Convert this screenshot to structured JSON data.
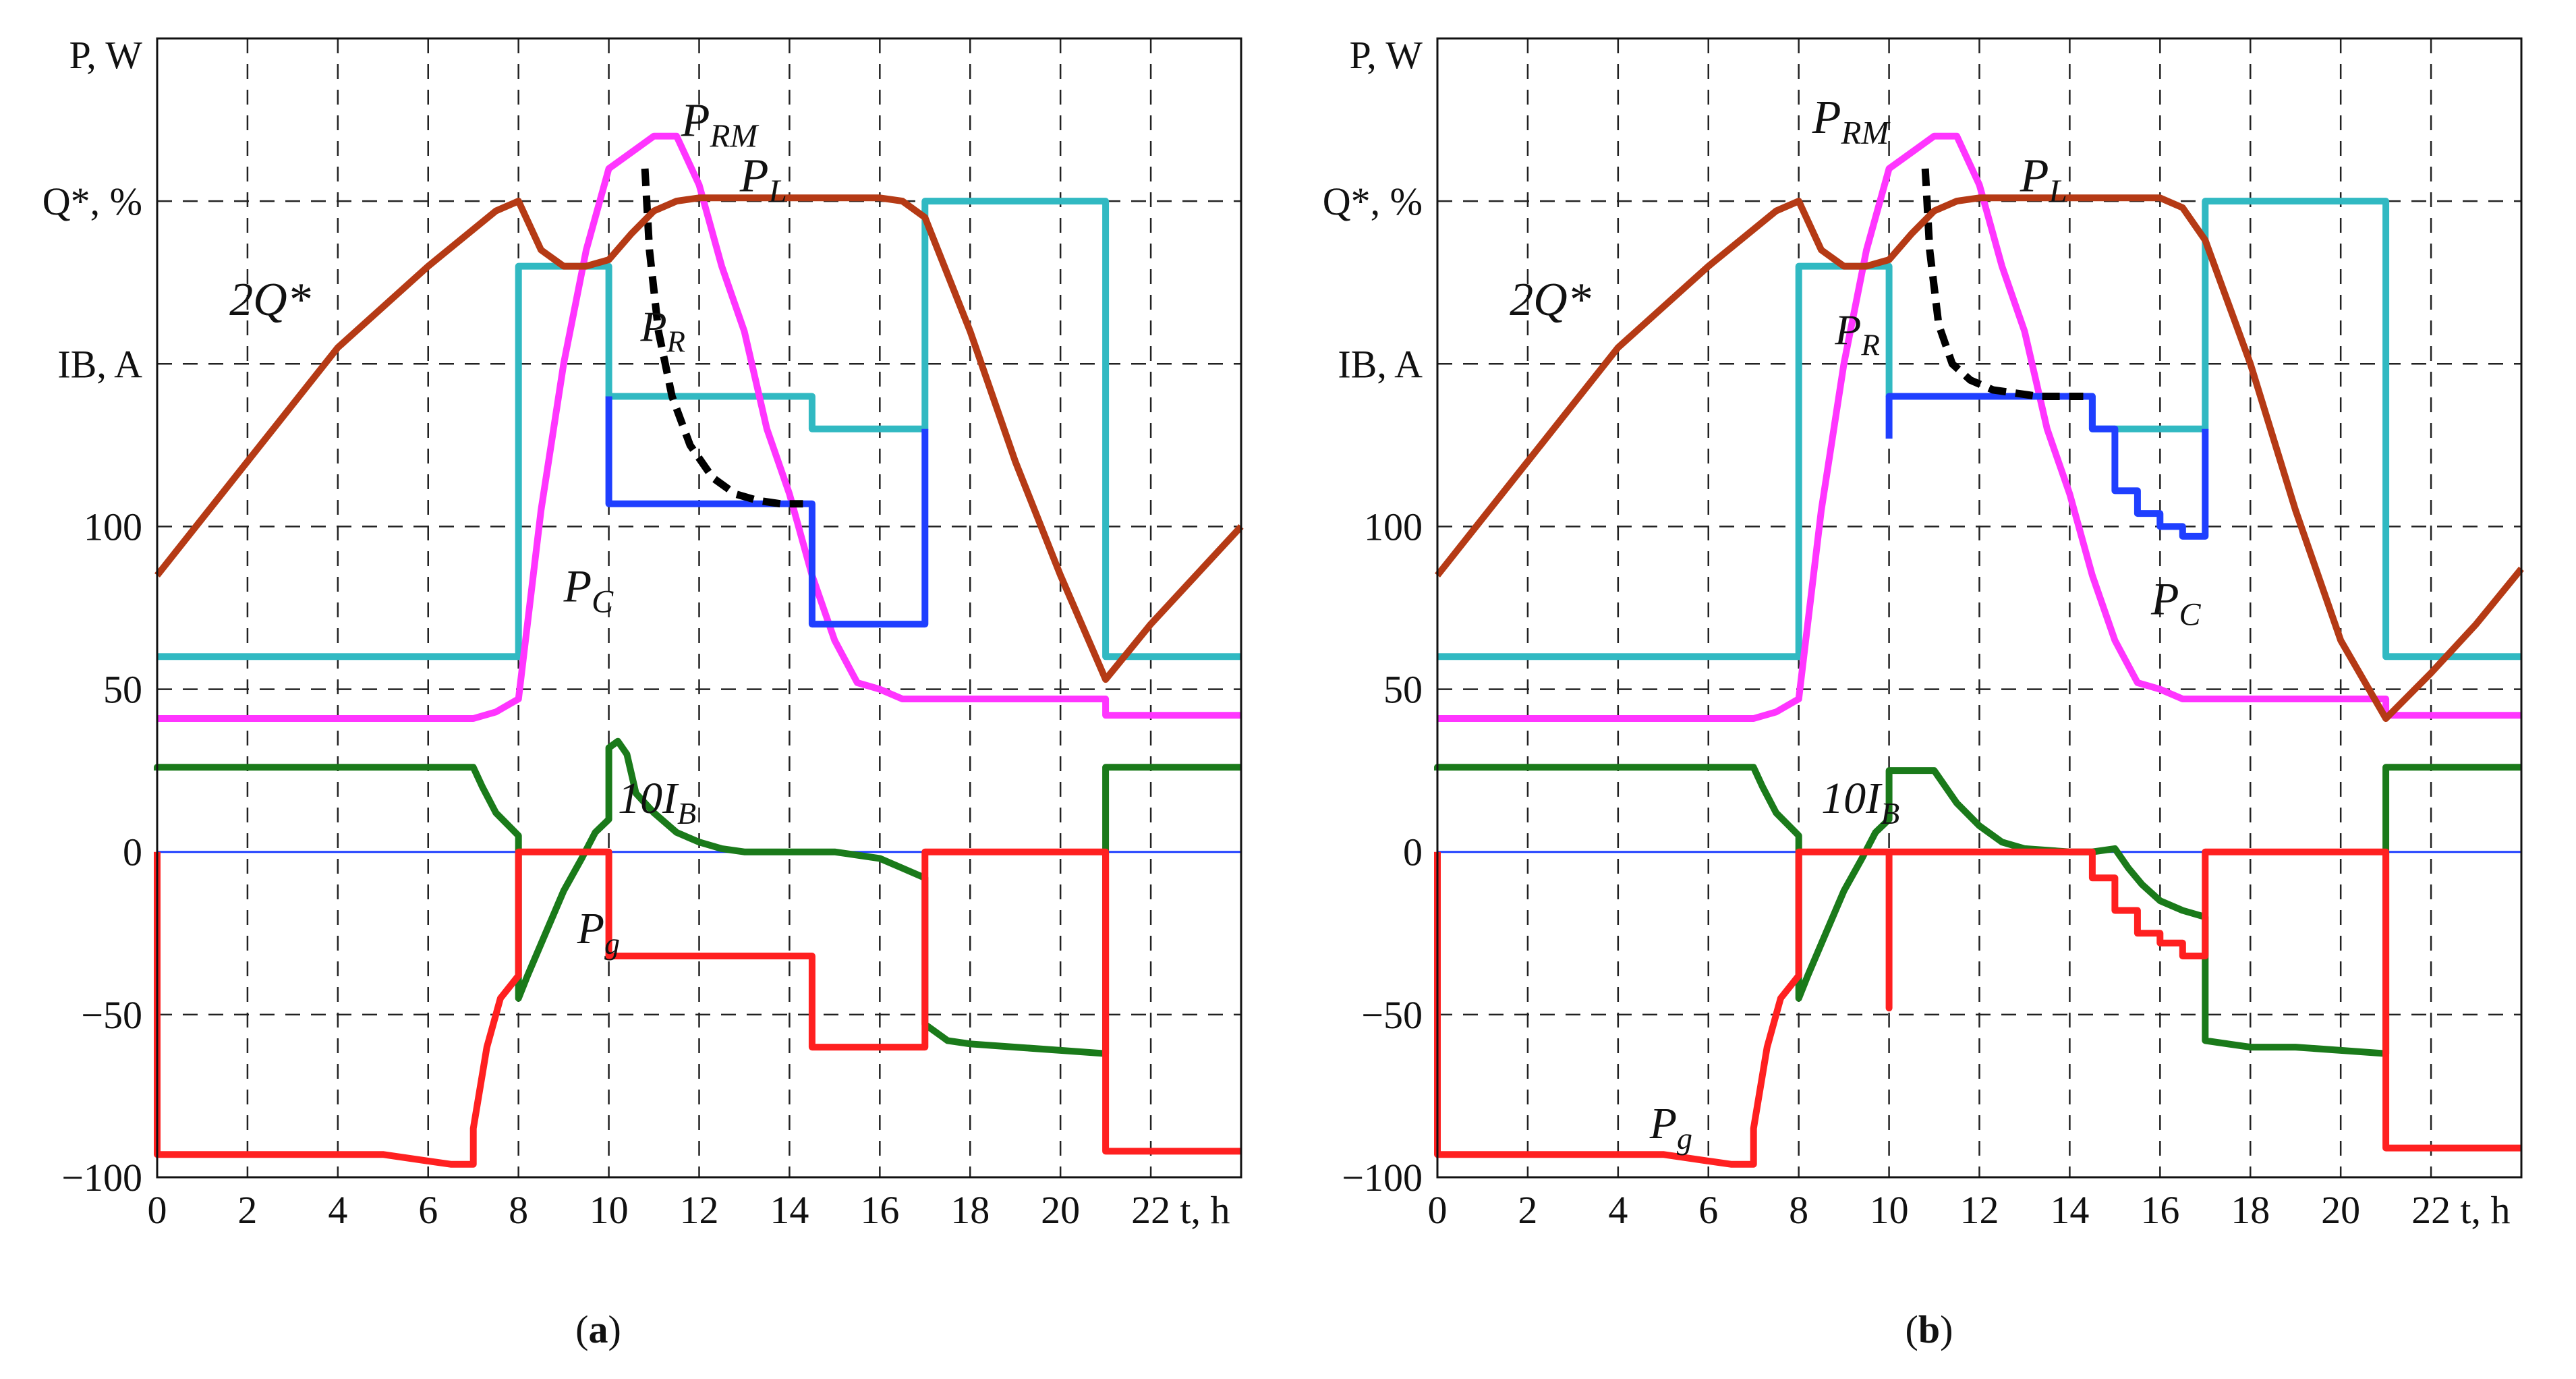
{
  "chart_data": [
    {
      "type": "line",
      "panel_label": "(a)",
      "xlabel": "t, h",
      "ylabels": [
        "P, W",
        "Q*, %",
        "IB, A"
      ],
      "x_ticks": [
        "0",
        "2",
        "4",
        "6",
        "8",
        "10",
        "12",
        "14",
        "16",
        "18",
        "20",
        "22"
      ],
      "y_ticks": [
        "−100",
        "−50",
        "0",
        "50",
        "100"
      ],
      "xlim": [
        0,
        24
      ],
      "ylim": [
        -100,
        250
      ],
      "grid": true,
      "series": [
        {
          "key": "PL",
          "name": "PL",
          "color": "#31b9c2",
          "style": "solid",
          "x": [
            0,
            8,
            8,
            10,
            10,
            14.5,
            14.5,
            17,
            17,
            21,
            21,
            24
          ],
          "y": [
            60,
            60,
            180,
            180,
            140,
            140,
            130,
            130,
            200,
            200,
            60,
            60
          ]
        },
        {
          "key": "PRM",
          "name": "PRM",
          "color": "#ff35ff",
          "style": "solid",
          "x": [
            0,
            7,
            7.5,
            8,
            8.5,
            9,
            9.5,
            10,
            10.5,
            11,
            11.5,
            12,
            12.5,
            13,
            13.5,
            14,
            14.5,
            15,
            15.5,
            16,
            16.5,
            17,
            18,
            20,
            21,
            21,
            24
          ],
          "y": [
            41,
            41,
            43,
            47,
            105,
            150,
            185,
            210,
            215,
            220,
            220,
            205,
            180,
            160,
            130,
            110,
            85,
            65,
            52,
            50,
            47,
            47,
            47,
            47,
            47,
            42,
            42
          ]
        },
        {
          "key": "PR",
          "name": "PR",
          "color": "#000000",
          "style": "dashed",
          "x": [
            10.8,
            10.9,
            11.1,
            11.4,
            11.8,
            12.3,
            12.8,
            13.3,
            13.8,
            14.3
          ],
          "y": [
            210,
            185,
            160,
            140,
            125,
            115,
            110,
            108,
            107,
            107
          ]
        },
        {
          "key": "PC",
          "name": "PC",
          "color": "#1f3fff",
          "style": "solid",
          "x": [
            10,
            10,
            14.5,
            14.5,
            17,
            17
          ],
          "y": [
            140,
            107,
            107,
            70,
            70,
            130
          ]
        },
        {
          "key": "Q",
          "name": "2Q*",
          "color": "#b53a15",
          "style": "solid",
          "x": [
            0,
            2,
            4,
            6,
            7.5,
            8,
            8.5,
            9,
            9.5,
            10,
            10.5,
            11,
            11.5,
            12,
            13,
            14,
            15,
            16,
            16.5,
            17,
            18,
            19,
            20,
            21,
            22,
            23,
            24
          ],
          "y": [
            85,
            120,
            155,
            180,
            197,
            200,
            185,
            180,
            180,
            182,
            190,
            197,
            200,
            201,
            201,
            201,
            201,
            201,
            200,
            195,
            160,
            120,
            85,
            53,
            70,
            85,
            100
          ]
        },
        {
          "key": "IB",
          "name": "10IB",
          "color": "#1a7a1a",
          "style": "solid",
          "x": [
            0,
            0,
            7,
            7.2,
            7.5,
            8,
            8,
            8.2,
            8.6,
            9,
            9.4,
            9.7,
            10,
            10,
            10.2,
            10.4,
            10.6,
            11,
            11.5,
            12,
            12.5,
            13,
            14,
            15,
            15.5,
            16,
            16.5,
            17,
            17,
            17.5,
            18,
            19,
            20,
            21,
            21,
            24
          ],
          "y": [
            25,
            26,
            26,
            20,
            12,
            5,
            -45,
            -38,
            -25,
            -12,
            -2,
            6,
            10,
            32,
            34,
            30,
            18,
            12,
            6,
            3,
            1,
            0,
            0,
            0,
            -1,
            -2,
            -5,
            -8,
            -53,
            -58,
            -59,
            -60,
            -61,
            -62,
            26,
            26
          ]
        },
        {
          "key": "Pg",
          "name": "Pg",
          "color": "#ff2020",
          "style": "solid",
          "x": [
            0,
            0,
            4,
            5,
            6,
            6.5,
            7,
            7,
            7.3,
            7.6,
            8,
            8,
            10,
            10,
            14.5,
            14.5,
            17,
            17,
            21,
            21,
            24
          ],
          "y": [
            0,
            -93,
            -93,
            -93,
            -95,
            -96,
            -96,
            -85,
            -60,
            -45,
            -38,
            0,
            0,
            -32,
            -32,
            -60,
            -60,
            0,
            0,
            -92,
            -92
          ]
        }
      ],
      "annotations": [
        {
          "text": "PRM",
          "label": "P",
          "sub": "RM"
        },
        {
          "text": "PL",
          "label": "P",
          "sub": "L"
        },
        {
          "text": "2Q*",
          "label": "2Q*",
          "sub": ""
        },
        {
          "text": "PR",
          "label": "P",
          "sub": "R"
        },
        {
          "text": "PC",
          "label": "P",
          "sub": "C"
        },
        {
          "text": "10IB",
          "label": "10I",
          "sub": "B"
        },
        {
          "text": "Pg",
          "label": "P",
          "sub": "g"
        }
      ]
    },
    {
      "type": "line",
      "panel_label": "(b)",
      "xlabel": "t, h",
      "ylabels": [
        "P, W",
        "Q*, %",
        "IB, A"
      ],
      "x_ticks": [
        "0",
        "2",
        "4",
        "6",
        "8",
        "10",
        "12",
        "14",
        "16",
        "18",
        "20",
        "22"
      ],
      "y_ticks": [
        "−100",
        "−50",
        "0",
        "50",
        "100"
      ],
      "xlim": [
        0,
        24
      ],
      "ylim": [
        -100,
        250
      ],
      "grid": true,
      "series": [
        {
          "key": "PL",
          "name": "PL",
          "color": "#31b9c2",
          "style": "solid",
          "x": [
            0,
            8,
            8,
            10,
            10,
            14.5,
            14.5,
            17,
            17,
            21,
            21,
            24
          ],
          "y": [
            60,
            60,
            180,
            180,
            140,
            140,
            130,
            130,
            200,
            200,
            60,
            60
          ]
        },
        {
          "key": "PRM",
          "name": "PRM",
          "color": "#ff35ff",
          "style": "solid",
          "x": [
            0,
            7,
            7.5,
            8,
            8.5,
            9,
            9.5,
            10,
            10.5,
            11,
            11.5,
            12,
            12.5,
            13,
            13.5,
            14,
            14.5,
            15,
            15.5,
            16,
            16.5,
            17,
            18,
            20,
            21,
            21,
            24
          ],
          "y": [
            41,
            41,
            43,
            47,
            105,
            150,
            185,
            210,
            215,
            220,
            220,
            205,
            180,
            160,
            130,
            110,
            85,
            65,
            52,
            50,
            47,
            47,
            47,
            47,
            47,
            42,
            42
          ]
        },
        {
          "key": "PR",
          "name": "PR",
          "color": "#000000",
          "style": "dashed",
          "x": [
            10.8,
            10.9,
            11.1,
            11.4,
            11.8,
            12.3,
            12.8,
            13.3,
            13.8,
            14.3
          ],
          "y": [
            210,
            185,
            162,
            150,
            145,
            142,
            141,
            140,
            140,
            140
          ]
        },
        {
          "key": "PC",
          "name": "PC",
          "color": "#1f3fff",
          "style": "solid",
          "x": [
            10,
            10,
            10,
            14.5,
            14.5,
            15,
            15,
            15.5,
            15.5,
            16,
            16,
            16.5,
            16.5,
            17,
            17
          ],
          "y": [
            127,
            140,
            140,
            140,
            130,
            130,
            111,
            111,
            104,
            104,
            100,
            100,
            97,
            97,
            130
          ]
        },
        {
          "key": "Q",
          "name": "2Q*",
          "color": "#b53a15",
          "style": "solid",
          "x": [
            0,
            2,
            4,
            6,
            7.5,
            8,
            8.5,
            9,
            9.5,
            10,
            10.5,
            11,
            11.5,
            12,
            13,
            14,
            15,
            16,
            16.5,
            17,
            18,
            19,
            20,
            21,
            22,
            23,
            24
          ],
          "y": [
            85,
            120,
            155,
            180,
            197,
            200,
            185,
            180,
            180,
            182,
            190,
            197,
            200,
            201,
            201,
            201,
            201,
            201,
            198,
            188,
            150,
            105,
            65,
            41,
            55,
            70,
            87
          ]
        },
        {
          "key": "IB",
          "name": "10IB",
          "color": "#1a7a1a",
          "style": "solid",
          "x": [
            0,
            0,
            7,
            7.2,
            7.5,
            8,
            8,
            8.2,
            8.6,
            9,
            9.4,
            9.7,
            10,
            10,
            10.5,
            11,
            11.5,
            12,
            12.5,
            13,
            14,
            14.5,
            15,
            15.3,
            15.6,
            16,
            16.5,
            17,
            17,
            17.5,
            18,
            19,
            20,
            21,
            21,
            24
          ],
          "y": [
            25,
            26,
            26,
            20,
            12,
            5,
            -45,
            -38,
            -25,
            -12,
            -2,
            6,
            10,
            25,
            25,
            25,
            15,
            8,
            3,
            1,
            0,
            0,
            1,
            -5,
            -10,
            -15,
            -18,
            -20,
            -58,
            -59,
            -60,
            -60,
            -61,
            -62,
            26,
            26
          ]
        },
        {
          "key": "Pg",
          "name": "Pg",
          "color": "#ff2020",
          "style": "solid",
          "x": [
            0,
            0,
            4,
            5,
            6,
            6.5,
            7,
            7,
            7.3,
            7.6,
            8,
            8,
            10,
            10,
            10,
            14.5,
            14.5,
            15,
            15,
            15.5,
            15.5,
            16,
            16,
            16.5,
            16.5,
            17,
            17,
            21,
            21,
            24
          ],
          "y": [
            0,
            -93,
            -93,
            -93,
            -95,
            -96,
            -96,
            -85,
            -60,
            -45,
            -38,
            0,
            0,
            -48,
            0,
            0,
            -8,
            -8,
            -18,
            -18,
            -25,
            -25,
            -28,
            -28,
            -32,
            -32,
            0,
            0,
            -91,
            -91
          ]
        }
      ],
      "annotations": [
        {
          "text": "PRM",
          "label": "P",
          "sub": "RM"
        },
        {
          "text": "PL",
          "label": "P",
          "sub": "L"
        },
        {
          "text": "2Q*",
          "label": "2Q*",
          "sub": ""
        },
        {
          "text": "PR",
          "label": "P",
          "sub": "R"
        },
        {
          "text": "PC",
          "label": "P",
          "sub": "C"
        },
        {
          "text": "10IB",
          "label": "10I",
          "sub": "B"
        },
        {
          "text": "Pg",
          "label": "P",
          "sub": "g"
        }
      ]
    }
  ]
}
